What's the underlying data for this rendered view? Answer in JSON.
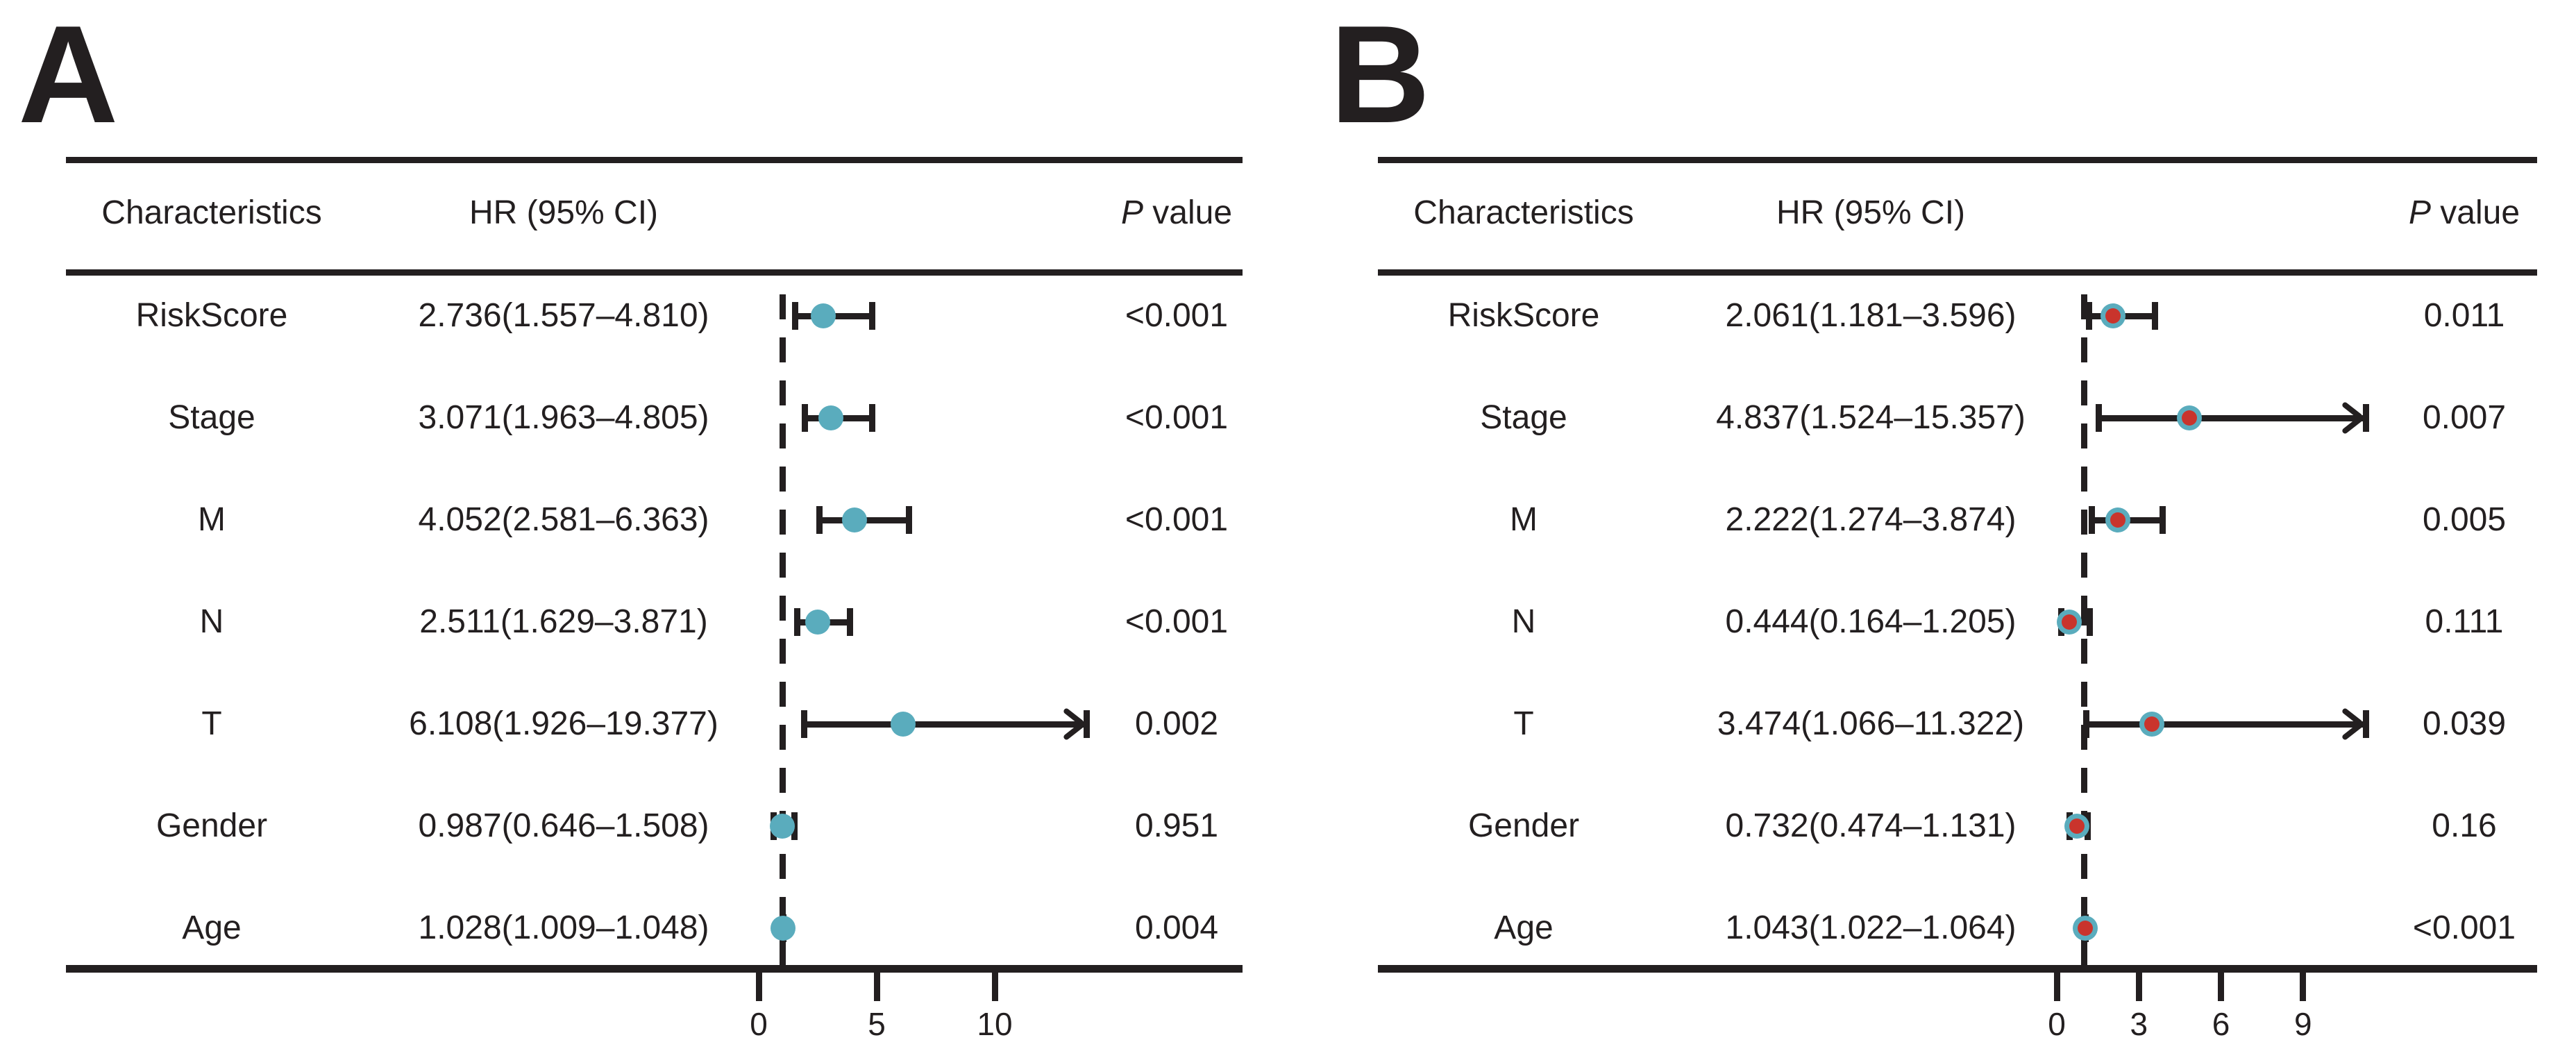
{
  "figure_labels": [
    "A",
    "B"
  ],
  "colors": {
    "teal": "#5AACBD",
    "red": "#C9342C",
    "ink": "#231F20"
  },
  "chart_data": [
    {
      "type": "forest",
      "panel_label": "A",
      "title_columns": {
        "characteristics": "Characteristics",
        "hr": "HR (95% CI)",
        "p_italic": "P",
        "p_rest": " value"
      },
      "axis": {
        "ticks": [
          0,
          5,
          10
        ],
        "dashed_reference": 1,
        "clip_max": 13.9,
        "xlim": [
          0,
          13.9
        ],
        "grid": false
      },
      "marker": {
        "outer": "#5AACBD",
        "inner": null
      },
      "rows": [
        {
          "name": "RiskScore",
          "hr": 2.736,
          "lo": 1.557,
          "hi": 4.81,
          "hr_text": "2.736(1.557–4.810)",
          "p": "<0.001"
        },
        {
          "name": "Stage",
          "hr": 3.071,
          "lo": 1.963,
          "hi": 4.805,
          "hr_text": "3.071(1.963–4.805)",
          "p": "<0.001"
        },
        {
          "name": "M",
          "hr": 4.052,
          "lo": 2.581,
          "hi": 6.363,
          "hr_text": "4.052(2.581–6.363)",
          "p": "<0.001"
        },
        {
          "name": "N",
          "hr": 2.511,
          "lo": 1.629,
          "hi": 3.871,
          "hr_text": "2.511(1.629–3.871)",
          "p": "<0.001"
        },
        {
          "name": "T",
          "hr": 6.108,
          "lo": 1.926,
          "hi": 19.377,
          "hr_text": "6.108(1.926–19.377)",
          "p": "0.002"
        },
        {
          "name": "Gender",
          "hr": 0.987,
          "lo": 0.646,
          "hi": 1.508,
          "hr_text": "0.987(0.646–1.508)",
          "p": "0.951"
        },
        {
          "name": "Age",
          "hr": 1.028,
          "lo": 1.009,
          "hi": 1.048,
          "hr_text": "1.028(1.009–1.048)",
          "p": "0.004"
        }
      ]
    },
    {
      "type": "forest",
      "panel_label": "B",
      "title_columns": {
        "characteristics": "Characteristics",
        "hr": "HR (95% CI)",
        "p_italic": "P",
        "p_rest": " value"
      },
      "axis": {
        "ticks": [
          0,
          3,
          6,
          9
        ],
        "dashed_reference": 1,
        "clip_max": 11.3,
        "xlim": [
          0,
          11.3
        ],
        "grid": false
      },
      "marker": {
        "outer": "#5AACBD",
        "inner": "#C9342C"
      },
      "rows": [
        {
          "name": "RiskScore",
          "hr": 2.061,
          "lo": 1.181,
          "hi": 3.596,
          "hr_text": "2.061(1.181–3.596)",
          "p": "0.011"
        },
        {
          "name": "Stage",
          "hr": 4.837,
          "lo": 1.524,
          "hi": 15.357,
          "hr_text": "4.837(1.524–15.357)",
          "p": "0.007"
        },
        {
          "name": "M",
          "hr": 2.222,
          "lo": 1.274,
          "hi": 3.874,
          "hr_text": "2.222(1.274–3.874)",
          "p": "0.005"
        },
        {
          "name": "N",
          "hr": 0.444,
          "lo": 0.164,
          "hi": 1.205,
          "hr_text": "0.444(0.164–1.205)",
          "p": "0.111"
        },
        {
          "name": "T",
          "hr": 3.474,
          "lo": 1.066,
          "hi": 11.322,
          "hr_text": "3.474(1.066–11.322)",
          "p": "0.039"
        },
        {
          "name": "Gender",
          "hr": 0.732,
          "lo": 0.474,
          "hi": 1.131,
          "hr_text": "0.732(0.474–1.131)",
          "p": "0.16"
        },
        {
          "name": "Age",
          "hr": 1.043,
          "lo": 1.022,
          "hi": 1.064,
          "hr_text": "1.043(1.022–1.064)",
          "p": "<0.001"
        }
      ]
    }
  ]
}
